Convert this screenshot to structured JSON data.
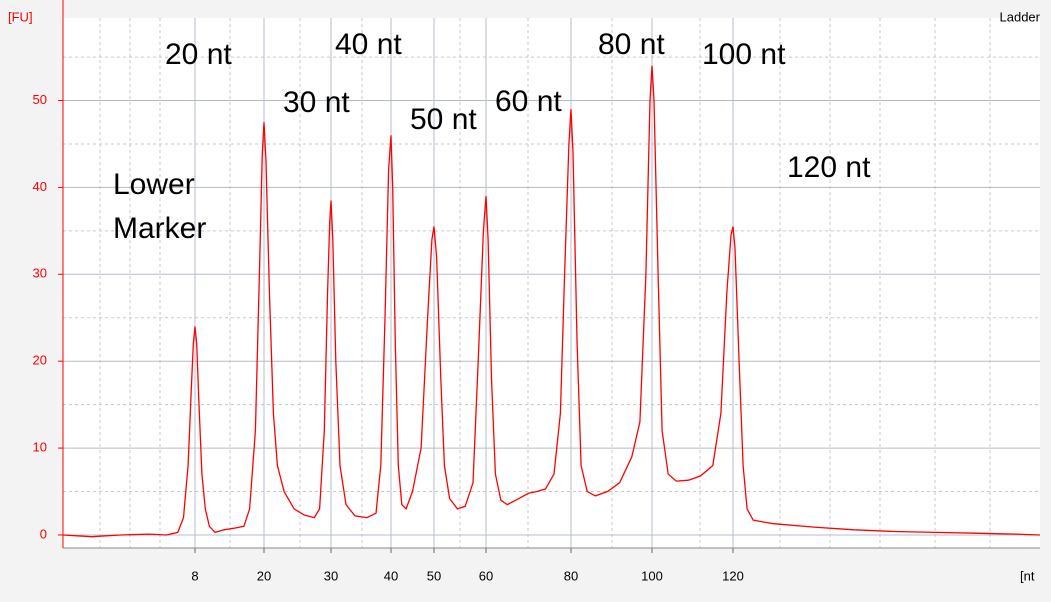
{
  "chart_data": {
    "type": "line",
    "y_label": "[FU]",
    "x_label": "[nt",
    "legend_title": "Ladder",
    "grid": true,
    "xlim": [
      -15,
      196
    ],
    "ylim": [
      -1.5,
      59.5
    ],
    "xticks": [
      8,
      20,
      30,
      40,
      50,
      60,
      80,
      100,
      120
    ],
    "yticks": [
      0,
      10,
      20,
      30,
      40,
      50
    ],
    "annotations": [
      "Lower\nMarker",
      "20 nt",
      "30 nt",
      "40 nt",
      "50 nt",
      "60 nt",
      "80 nt",
      "100 nt",
      "120 nt"
    ],
    "series": [
      {
        "name": "Ladder",
        "color": "#ff0000",
        "x": [
          -15,
          -10,
          -5,
          0,
          3,
          5,
          6,
          6.8,
          7.3,
          7.7,
          8,
          8.3,
          8.7,
          9.2,
          9.8,
          10.5,
          11.5,
          13,
          15,
          16.5,
          17.5,
          18.5,
          19.2,
          19.7,
          20,
          20.3,
          20.8,
          21.4,
          22,
          23,
          24.5,
          26,
          27.5,
          28.3,
          29,
          29.5,
          29.8,
          30,
          30.3,
          30.8,
          31.5,
          32.5,
          34,
          36,
          37.5,
          38.3,
          39,
          39.6,
          40,
          40.4,
          41,
          41.7,
          42.5,
          43.5,
          45,
          47,
          48.5,
          49.5,
          50,
          50.5,
          51.3,
          52,
          53,
          54.5,
          56,
          57.5,
          58.5,
          59.5,
          60,
          60.5,
          61.3,
          62.2,
          63.5,
          65,
          67,
          70,
          72,
          74,
          76,
          77.5,
          78.5,
          79.5,
          80,
          80.5,
          81.5,
          82.5,
          84,
          86,
          89,
          92,
          95,
          97,
          98.5,
          99.5,
          100,
          100.5,
          101.5,
          102.5,
          104,
          106,
          109,
          112,
          115,
          117,
          118.5,
          119.5,
          120,
          120.5,
          121.5,
          122.5,
          123.5,
          125,
          130,
          140,
          150,
          160,
          170,
          180,
          190,
          196
        ],
        "values": [
          0,
          -0.2,
          0,
          0.1,
          0,
          0.3,
          2,
          8,
          16,
          22,
          24,
          22,
          15,
          7,
          3,
          1,
          0.3,
          0.6,
          0.8,
          1,
          3,
          12,
          30,
          44,
          47.5,
          43,
          28,
          14,
          8,
          5,
          3,
          2.3,
          2,
          3,
          12,
          28,
          36,
          38.5,
          34,
          20,
          8,
          3.5,
          2.2,
          2,
          2.5,
          8,
          25,
          42,
          46,
          40,
          22,
          8,
          3.5,
          3,
          5,
          10,
          25,
          34,
          35.5,
          32,
          18,
          8,
          4.2,
          3,
          3.3,
          6,
          20,
          35,
          39,
          34,
          18,
          7,
          4,
          3.5,
          4,
          4.8,
          5,
          5.3,
          7,
          14,
          30,
          45,
          49,
          44,
          22,
          8,
          5,
          4.5,
          5,
          6,
          9,
          13,
          30,
          50,
          54,
          50,
          30,
          12,
          7,
          6.2,
          6.3,
          6.8,
          8,
          14,
          28,
          34.5,
          35.5,
          33,
          20,
          8,
          3,
          1.7,
          1.3,
          0.9,
          0.6,
          0.4,
          0.3,
          0.2,
          0.1,
          0
        ]
      }
    ]
  }
}
